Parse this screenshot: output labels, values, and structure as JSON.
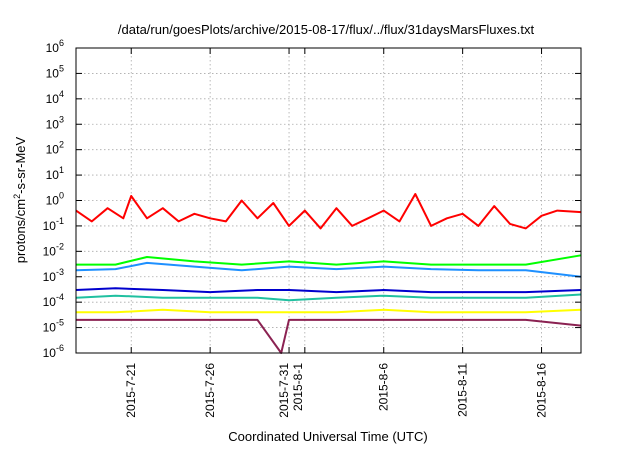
{
  "chart_data": {
    "type": "line",
    "title": "/data/run/goesPlots/archive/2015-08-17/flux/../flux/31daysMarsFluxes.txt",
    "xlabel": "Coordinated Universal Time (UTC)",
    "ylabel": "protons/cm2-s-sr-MeV",
    "ylabel_parts": {
      "base": "protons/cm",
      "sup": "2",
      "rest": "-s-sr-MeV"
    },
    "y_scale": "log",
    "ylim": [
      1e-06,
      1000000.0
    ],
    "y_ticks": [
      {
        "base": "10",
        "exp": "-6"
      },
      {
        "base": "10",
        "exp": "-5"
      },
      {
        "base": "10",
        "exp": "-4"
      },
      {
        "base": "10",
        "exp": "-3"
      },
      {
        "base": "10",
        "exp": "-2"
      },
      {
        "base": "10",
        "exp": "-1"
      },
      {
        "base": "10",
        "exp": "0"
      },
      {
        "base": "10",
        "exp": "1"
      },
      {
        "base": "10",
        "exp": "2"
      },
      {
        "base": "10",
        "exp": "3"
      },
      {
        "base": "10",
        "exp": "4"
      },
      {
        "base": "10",
        "exp": "5"
      },
      {
        "base": "10",
        "exp": "6"
      }
    ],
    "xlim": [
      "2015-07-17T12:00",
      "2015-08-18T12:00"
    ],
    "x_ticks": [
      {
        "date": "2015-07-21",
        "label": "2015-7-21"
      },
      {
        "date": "2015-07-26",
        "label": "2015-7-26"
      },
      {
        "date": "2015-07-31",
        "label": "2015-7-31"
      },
      {
        "date": "2015-08-01",
        "label": "2015-8-1"
      },
      {
        "date": "2015-08-06",
        "label": "2015-8-6"
      },
      {
        "date": "2015-08-11",
        "label": "2015-8-11"
      },
      {
        "date": "2015-08-16",
        "label": "2015-8-16"
      }
    ],
    "grid": true,
    "legend": "none",
    "series": [
      {
        "color": "#ff0000",
        "x": [
          "2015-07-17T12:00",
          "2015-07-18T12:00",
          "2015-07-19T12:00",
          "2015-07-20T12:00",
          "2015-07-21T00:00",
          "2015-07-22T00:00",
          "2015-07-23T00:00",
          "2015-07-24T00:00",
          "2015-07-25T00:00",
          "2015-07-26T00:00",
          "2015-07-27T00:00",
          "2015-07-28T00:00",
          "2015-07-29T00:00",
          "2015-07-30T00:00",
          "2015-07-31T00:00",
          "2015-08-01T00:00",
          "2015-08-02T00:00",
          "2015-08-03T00:00",
          "2015-08-04T00:00",
          "2015-08-05T00:00",
          "2015-08-06T00:00",
          "2015-08-07T00:00",
          "2015-08-08T00:00",
          "2015-08-09T00:00",
          "2015-08-10T00:00",
          "2015-08-11T00:00",
          "2015-08-12T00:00",
          "2015-08-13T00:00",
          "2015-08-14T00:00",
          "2015-08-15T00:00",
          "2015-08-16T00:00",
          "2015-08-17T00:00",
          "2015-08-18T12:00"
        ],
        "y": [
          0.4,
          0.15,
          0.5,
          0.2,
          1.5,
          0.2,
          0.5,
          0.15,
          0.3,
          0.2,
          0.15,
          1.0,
          0.2,
          0.8,
          0.1,
          0.4,
          0.08,
          0.5,
          0.1,
          0.2,
          0.4,
          0.15,
          1.8,
          0.1,
          0.2,
          0.3,
          0.1,
          0.6,
          0.12,
          0.08,
          0.25,
          0.4,
          0.35
        ]
      },
      {
        "color": "#00ff00",
        "x": [
          "2015-07-17T12:00",
          "2015-07-20T00:00",
          "2015-07-22T00:00",
          "2015-07-25T00:00",
          "2015-07-28T00:00",
          "2015-07-31T00:00",
          "2015-08-03T00:00",
          "2015-08-06T00:00",
          "2015-08-09T00:00",
          "2015-08-12T00:00",
          "2015-08-15T00:00",
          "2015-08-18T12:00"
        ],
        "y": [
          0.003,
          0.003,
          0.006,
          0.004,
          0.003,
          0.004,
          0.003,
          0.004,
          0.003,
          0.003,
          0.003,
          0.007
        ]
      },
      {
        "color": "#1e90ff",
        "x": [
          "2015-07-17T12:00",
          "2015-07-20T00:00",
          "2015-07-22T00:00",
          "2015-07-25T00:00",
          "2015-07-28T00:00",
          "2015-07-31T00:00",
          "2015-08-03T00:00",
          "2015-08-06T00:00",
          "2015-08-09T00:00",
          "2015-08-12T00:00",
          "2015-08-15T00:00",
          "2015-08-18T12:00"
        ],
        "y": [
          0.0018,
          0.002,
          0.0035,
          0.0025,
          0.0018,
          0.0025,
          0.002,
          0.0025,
          0.002,
          0.0018,
          0.0018,
          0.001
        ]
      },
      {
        "color": "#0000cd",
        "x": [
          "2015-07-17T12:00",
          "2015-07-20T00:00",
          "2015-07-23T00:00",
          "2015-07-26T00:00",
          "2015-07-29T00:00",
          "2015-07-31T00:00",
          "2015-08-03T00:00",
          "2015-08-06T00:00",
          "2015-08-09T00:00",
          "2015-08-12T00:00",
          "2015-08-15T00:00",
          "2015-08-18T12:00"
        ],
        "y": [
          0.0003,
          0.00035,
          0.0003,
          0.00025,
          0.0003,
          0.0003,
          0.00025,
          0.0003,
          0.00025,
          0.00025,
          0.00025,
          0.0003
        ]
      },
      {
        "color": "#20c0a0",
        "x": [
          "2015-07-17T12:00",
          "2015-07-20T00:00",
          "2015-07-23T00:00",
          "2015-07-26T00:00",
          "2015-07-29T00:00",
          "2015-07-31T00:00",
          "2015-08-03T00:00",
          "2015-08-06T00:00",
          "2015-08-09T00:00",
          "2015-08-12T00:00",
          "2015-08-15T00:00",
          "2015-08-18T12:00"
        ],
        "y": [
          0.00015,
          0.00018,
          0.00015,
          0.00015,
          0.00015,
          0.00012,
          0.00015,
          0.00018,
          0.00015,
          0.00015,
          0.00015,
          0.0002
        ]
      },
      {
        "color": "#ffff00",
        "x": [
          "2015-07-17T12:00",
          "2015-07-20T00:00",
          "2015-07-23T00:00",
          "2015-07-26T00:00",
          "2015-07-29T00:00",
          "2015-07-31T00:00",
          "2015-08-03T00:00",
          "2015-08-06T00:00",
          "2015-08-09T00:00",
          "2015-08-12T00:00",
          "2015-08-15T00:00",
          "2015-08-18T12:00"
        ],
        "y": [
          4e-05,
          4e-05,
          5e-05,
          4e-05,
          4e-05,
          4e-05,
          4e-05,
          5e-05,
          4e-05,
          4e-05,
          4e-05,
          5e-05
        ]
      },
      {
        "color": "#8b2252",
        "x": [
          "2015-07-17T12:00",
          "2015-07-20T00:00",
          "2015-07-23T00:00",
          "2015-07-26T00:00",
          "2015-07-29T00:00",
          "2015-07-30T12:00",
          "2015-07-31T00:00",
          "2015-08-03T00:00",
          "2015-08-06T00:00",
          "2015-08-09T00:00",
          "2015-08-12T00:00",
          "2015-08-15T00:00",
          "2015-08-18T12:00"
        ],
        "y": [
          2e-05,
          2e-05,
          2e-05,
          2e-05,
          2e-05,
          1e-06,
          2e-05,
          2e-05,
          2e-05,
          2e-05,
          2e-05,
          2e-05,
          1.2e-05
        ]
      }
    ]
  }
}
